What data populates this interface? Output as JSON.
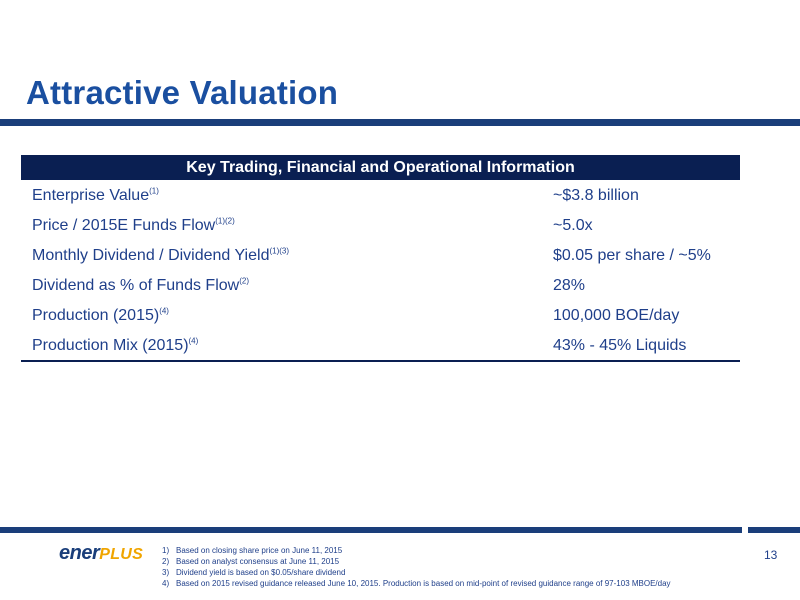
{
  "slide": {
    "title": "Attractive Valuation",
    "page_number": "13"
  },
  "table": {
    "header": "Key Trading, Financial and Operational Information",
    "rows": [
      {
        "label": "Enterprise Value",
        "refs": "(1)",
        "value": "~$3.8 billion"
      },
      {
        "label": "Price / 2015E Funds Flow",
        "refs": "(1)(2)",
        "value": "~5.0x"
      },
      {
        "label": "Monthly Dividend / Dividend Yield",
        "refs": "(1)(3)",
        "value": "$0.05 per share / ~5%"
      },
      {
        "label": "Dividend as % of Funds Flow",
        "refs": "(2)",
        "value": "28%"
      },
      {
        "label": "Production (2015)",
        "refs": "(4)",
        "value": "100,000 BOE/day"
      },
      {
        "label": "Production Mix (2015)",
        "refs": "(4)",
        "value": "43% - 45% Liquids"
      }
    ]
  },
  "footnotes": [
    {
      "num": "1)",
      "text": "Based on closing share price on June 11, 2015"
    },
    {
      "num": "2)",
      "text": "Based on analyst consensus at June 11, 2015"
    },
    {
      "num": "3)",
      "text": "Dividend yield is based on $0.05/share dividend"
    },
    {
      "num": "4)",
      "text": "Based on 2015 revised guidance released June 10, 2015. Production is based on mid-point of revised guidance range of 97-103 MBOE/day"
    }
  ],
  "logo": {
    "part1": "ener",
    "part2": "PLUS"
  },
  "colors": {
    "title": "#1a4fa0",
    "rule": "#1a3e7a",
    "table_header_bg": "#0a1f52",
    "text": "#1f3f8a",
    "logo_accent": "#f0a500"
  }
}
